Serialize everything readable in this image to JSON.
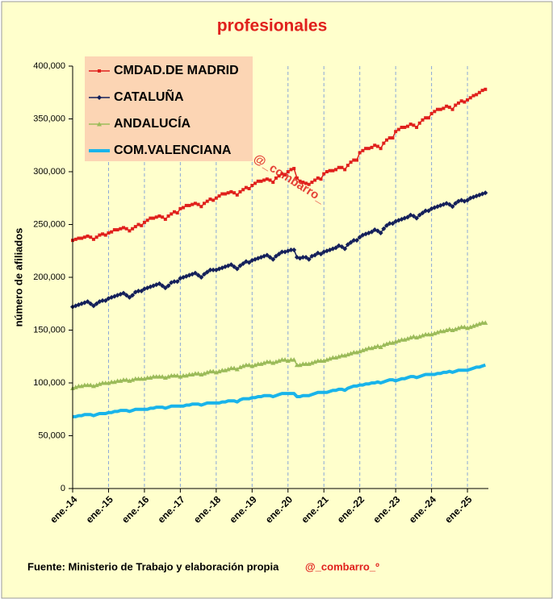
{
  "chart_data": {
    "type": "line",
    "title": "profesionales",
    "y_label": "número de afiliados",
    "legend": "upper left",
    "grid_x": true,
    "source": "Fuente: Ministerio de Trabajo y elaboración propia",
    "credit": "@_combarro_º",
    "watermark": "@_combarro_",
    "ylim": [
      0,
      400000
    ],
    "yticks": [
      0,
      {
        "value": 50000,
        "label": "50,000"
      },
      {
        "value": 100000,
        "label": "100,000"
      },
      {
        "value": 150000,
        "label": "150,000"
      },
      {
        "value": 200000,
        "label": "200,000"
      },
      {
        "value": 250000,
        "label": "250,000"
      },
      {
        "value": 300000,
        "label": "300,000"
      },
      {
        "value": 350000,
        "label": "350,000"
      },
      {
        "value": 400000,
        "label": "400,000"
      }
    ],
    "categories": [
      "ene.-14",
      null,
      null,
      null,
      null,
      null,
      null,
      null,
      null,
      null,
      null,
      null,
      "ene.-15",
      null,
      null,
      null,
      null,
      null,
      null,
      null,
      null,
      null,
      null,
      null,
      "ene.-16",
      null,
      null,
      null,
      null,
      null,
      null,
      null,
      null,
      null,
      null,
      null,
      "ene.-17",
      null,
      null,
      null,
      null,
      null,
      null,
      null,
      null,
      null,
      null,
      null,
      "ene.-18",
      null,
      null,
      null,
      null,
      null,
      null,
      null,
      null,
      null,
      null,
      null,
      "ene.-19",
      null,
      null,
      null,
      null,
      null,
      null,
      null,
      null,
      null,
      null,
      null,
      "ene.-20",
      null,
      null,
      null,
      null,
      null,
      null,
      null,
      null,
      null,
      null,
      null,
      "ene.-21",
      null,
      null,
      null,
      null,
      null,
      null,
      null,
      null,
      null,
      null,
      null,
      "ene.-22",
      null,
      null,
      null,
      null,
      null,
      null,
      null,
      null,
      null,
      null,
      null,
      "ene.-23",
      null,
      null,
      null,
      null,
      null,
      null,
      null,
      null,
      null,
      null,
      null,
      "ene.-24",
      null,
      null,
      null,
      null,
      null,
      null,
      null,
      null,
      null,
      null,
      null,
      "ene.-25",
      null,
      null,
      null,
      null,
      null,
      null
    ],
    "series": [
      {
        "name": "CMDAD.DE MADRID",
        "color": "#e0201c",
        "marker": "square",
        "values": [
          235000,
          236000,
          237000,
          237000,
          238000,
          239000,
          238000,
          236000,
          238000,
          240000,
          241000,
          240000,
          242000,
          243000,
          245000,
          245000,
          246000,
          247000,
          246000,
          244000,
          246000,
          248000,
          250000,
          249000,
          252000,
          254000,
          256000,
          256000,
          257000,
          258000,
          257000,
          255000,
          258000,
          260000,
          262000,
          261000,
          265000,
          266000,
          268000,
          268000,
          269000,
          270000,
          269000,
          267000,
          270000,
          272000,
          274000,
          273000,
          275000,
          277000,
          279000,
          279000,
          280000,
          281000,
          280000,
          278000,
          281000,
          283000,
          285000,
          284000,
          287000,
          289000,
          291000,
          291000,
          292000,
          293000,
          292000,
          290000,
          294000,
          296000,
          298000,
          297000,
          300000,
          302000,
          303000,
          294000,
          291000,
          290000,
          289000,
          288000,
          290000,
          292000,
          294000,
          293000,
          298000,
          300000,
          301000,
          301000,
          302000,
          304000,
          304000,
          302000,
          306000,
          309000,
          311000,
          311000,
          318000,
          320000,
          322000,
          322000,
          323000,
          325000,
          324000,
          322000,
          327000,
          330000,
          332000,
          332000,
          338000,
          340000,
          342000,
          342000,
          343000,
          345000,
          344000,
          342000,
          346000,
          349000,
          351000,
          351000,
          355000,
          357000,
          359000,
          359000,
          360000,
          362000,
          361000,
          359000,
          363000,
          365000,
          367000,
          366000,
          368000,
          370000,
          372000,
          373000,
          375000,
          377000,
          378000
        ]
      },
      {
        "name": "CATALUÑA",
        "color": "#14205a",
        "marker": "diamond",
        "values": [
          172000,
          173000,
          174000,
          175000,
          176000,
          177000,
          175000,
          173000,
          175000,
          177000,
          178000,
          178000,
          180000,
          181000,
          182000,
          183000,
          184000,
          185000,
          183000,
          181000,
          183000,
          186000,
          187000,
          187000,
          189000,
          190000,
          191000,
          192000,
          193000,
          194000,
          192000,
          190000,
          192000,
          195000,
          196000,
          196000,
          199000,
          200000,
          201000,
          202000,
          203000,
          204000,
          202000,
          200000,
          203000,
          205000,
          207000,
          207000,
          207000,
          208000,
          209000,
          210000,
          211000,
          212000,
          210000,
          208000,
          211000,
          213000,
          215000,
          214000,
          216000,
          217000,
          218000,
          219000,
          220000,
          221000,
          219000,
          217000,
          220000,
          222000,
          224000,
          224000,
          225000,
          226000,
          226000,
          219000,
          218000,
          219000,
          219000,
          217000,
          220000,
          221000,
          223000,
          222000,
          224000,
          225000,
          226000,
          227000,
          228000,
          230000,
          229000,
          227000,
          231000,
          233000,
          235000,
          235000,
          238000,
          240000,
          241000,
          242000,
          243000,
          245000,
          244000,
          242000,
          246000,
          249000,
          251000,
          251000,
          253000,
          254000,
          255000,
          256000,
          257000,
          259000,
          258000,
          256000,
          259000,
          261000,
          263000,
          263000,
          265000,
          266000,
          267000,
          268000,
          269000,
          270000,
          269000,
          267000,
          270000,
          272000,
          273000,
          272000,
          273000,
          275000,
          276000,
          277000,
          278000,
          279000,
          280000
        ]
      },
      {
        "name": "ANDALUCÍA",
        "color": "#9bbb59",
        "marker": "triangle",
        "values": [
          95000,
          96000,
          97000,
          97000,
          98000,
          98000,
          98000,
          97000,
          98000,
          99000,
          100000,
          100000,
          100000,
          101000,
          101000,
          102000,
          102000,
          103000,
          103000,
          102000,
          103000,
          104000,
          104000,
          104000,
          104000,
          105000,
          105000,
          106000,
          106000,
          106000,
          106000,
          105000,
          106000,
          107000,
          107000,
          107000,
          106000,
          107000,
          107000,
          108000,
          108000,
          109000,
          109000,
          108000,
          109000,
          110000,
          111000,
          111000,
          110000,
          111000,
          112000,
          112000,
          113000,
          114000,
          114000,
          113000,
          115000,
          116000,
          117000,
          117000,
          116000,
          117000,
          118000,
          118000,
          119000,
          120000,
          120000,
          119000,
          120000,
          121000,
          122000,
          122000,
          121000,
          122000,
          122000,
          117000,
          117000,
          118000,
          118000,
          118000,
          119000,
          120000,
          121000,
          121000,
          121000,
          122000,
          123000,
          124000,
          124000,
          125000,
          126000,
          126000,
          127000,
          128000,
          129000,
          129000,
          130000,
          131000,
          132000,
          133000,
          133000,
          134000,
          135000,
          134000,
          136000,
          137000,
          138000,
          138000,
          139000,
          140000,
          141000,
          141000,
          142000,
          143000,
          144000,
          143000,
          144000,
          145000,
          146000,
          146000,
          146000,
          147000,
          148000,
          149000,
          149000,
          150000,
          151000,
          150000,
          151000,
          152000,
          153000,
          153000,
          152000,
          153000,
          154000,
          155000,
          156000,
          157000,
          157000
        ]
      },
      {
        "name": "COM.VALENCIANA",
        "color": "#19b4ea",
        "marker": "none",
        "values": [
          68000,
          68000,
          69000,
          69000,
          70000,
          70000,
          70000,
          69000,
          70000,
          71000,
          71000,
          71000,
          72000,
          72000,
          73000,
          73000,
          74000,
          74000,
          74000,
          73000,
          74000,
          75000,
          75000,
          75000,
          75000,
          75000,
          76000,
          76000,
          77000,
          77000,
          77000,
          76000,
          77000,
          78000,
          78000,
          78000,
          78000,
          78000,
          79000,
          79000,
          80000,
          80000,
          80000,
          79000,
          80000,
          81000,
          81000,
          81000,
          81000,
          81000,
          82000,
          82000,
          83000,
          83000,
          83000,
          82000,
          84000,
          85000,
          85000,
          85000,
          86000,
          86000,
          87000,
          87000,
          88000,
          88000,
          88000,
          87000,
          88000,
          89000,
          90000,
          90000,
          90000,
          90000,
          90000,
          87000,
          87000,
          88000,
          88000,
          88000,
          89000,
          90000,
          91000,
          91000,
          91000,
          91000,
          92000,
          93000,
          93000,
          94000,
          94000,
          93000,
          95000,
          96000,
          97000,
          97000,
          98000,
          98000,
          99000,
          99000,
          100000,
          100000,
          101000,
          100000,
          101000,
          102000,
          103000,
          103000,
          102000,
          103000,
          104000,
          104000,
          105000,
          106000,
          106000,
          105000,
          106000,
          107000,
          108000,
          108000,
          108000,
          108000,
          109000,
          109000,
          110000,
          110000,
          111000,
          110000,
          111000,
          112000,
          112000,
          112000,
          112000,
          113000,
          114000,
          115000,
          115000,
          116000,
          117000
        ]
      }
    ]
  }
}
